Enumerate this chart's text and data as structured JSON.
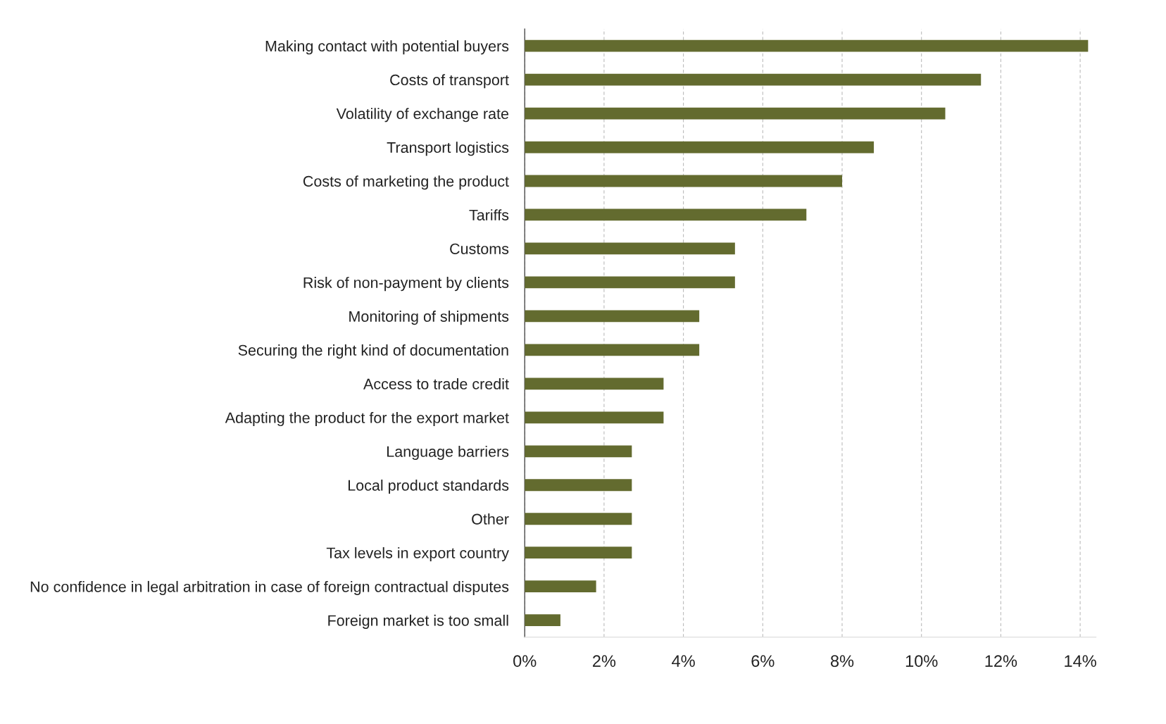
{
  "chart_data": {
    "type": "bar",
    "orientation": "horizontal",
    "color": "#636b2f",
    "categories": [
      "Making contact with potential buyers",
      "Costs of transport",
      "Volatility of exchange rate",
      "Transport logistics",
      "Costs of marketing the product",
      "Tariffs",
      "Customs",
      "Risk of non-payment by clients",
      "Monitoring of shipments",
      "Securing the right kind of documentation",
      "Access to trade credit",
      "Adapting the product for the export market",
      "Language barriers",
      "Local product standards",
      "Other",
      "Tax levels in export country",
      "No confidence in legal arbitration in case of foreign contractual disputes",
      "Foreign market is too small"
    ],
    "values": [
      14.2,
      11.5,
      10.6,
      8.8,
      8.0,
      7.1,
      5.3,
      5.3,
      4.4,
      4.4,
      3.5,
      3.5,
      2.7,
      2.7,
      2.7,
      2.7,
      1.8,
      0.9
    ],
    "xlim": [
      0,
      14.4
    ],
    "xticks": [
      {
        "value": 0,
        "label": "0%"
      },
      {
        "value": 2,
        "label": "2%"
      },
      {
        "value": 4,
        "label": "4%"
      },
      {
        "value": 6,
        "label": "6%"
      },
      {
        "value": 8,
        "label": "8%"
      },
      {
        "value": 10,
        "label": "10%"
      },
      {
        "value": 12,
        "label": "12%"
      },
      {
        "value": 14,
        "label": "14%"
      }
    ],
    "grid": "x"
  }
}
